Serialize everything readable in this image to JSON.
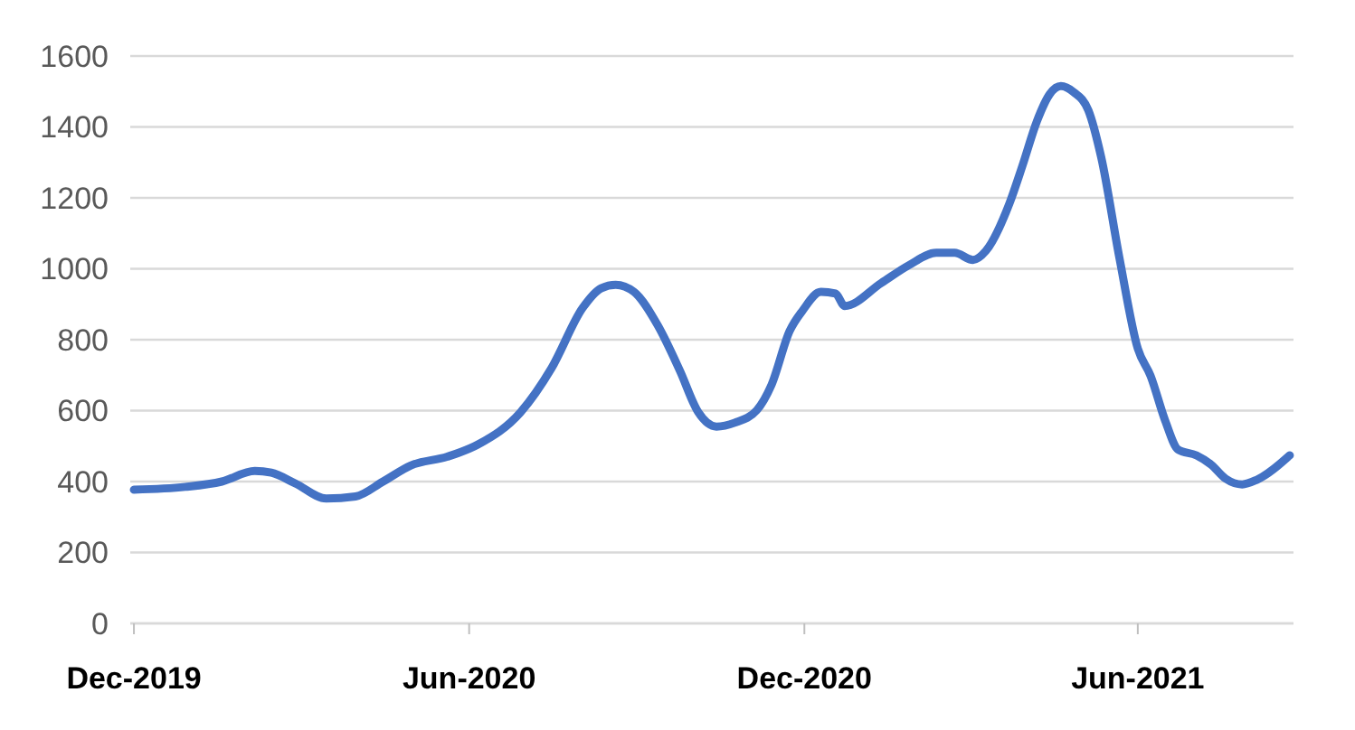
{
  "chart_data": {
    "type": "line",
    "x": [
      "2019-12-01",
      "2019-12-29",
      "2020-01-18",
      "2020-02-05",
      "2020-02-14",
      "2020-02-27",
      "2020-03-15",
      "2020-03-31",
      "2020-04-15",
      "2020-04-30",
      "2020-05-20",
      "2020-06-06",
      "2020-06-29",
      "2020-07-16",
      "2020-08-02",
      "2020-08-12",
      "2020-08-20",
      "2020-08-30",
      "2020-09-12",
      "2020-09-24",
      "2020-10-04",
      "2020-10-14",
      "2020-10-24",
      "2020-11-05",
      "2020-11-13",
      "2020-11-23",
      "2020-11-30",
      "2020-12-10",
      "2020-12-18",
      "2020-12-23",
      "2021-01-12",
      "2021-01-27",
      "2021-02-11",
      "2021-02-21",
      "2021-03-03",
      "2021-03-10",
      "2021-03-23",
      "2021-03-30",
      "2021-04-07",
      "2021-04-14",
      "2021-04-20",
      "2021-04-27",
      "2021-05-05",
      "2021-05-12",
      "2021-05-22",
      "2021-06-01",
      "2021-06-08",
      "2021-06-16",
      "2021-06-23",
      "2021-07-03",
      "2021-07-11",
      "2021-07-19",
      "2021-07-28",
      "2021-08-05",
      "2021-08-23"
    ],
    "series": [
      {
        "color": "#4472c4",
        "values": [
          377,
          385,
          400,
          430,
          425,
          395,
          352,
          358,
          400,
          445,
          470,
          505,
          595,
          720,
          890,
          945,
          955,
          935,
          840,
          713,
          596,
          555,
          566,
          601,
          672,
          825,
          882,
          935,
          930,
          895,
          960,
          1010,
          1045,
          1045,
          1025,
          1050,
          1185,
          1290,
          1417,
          1493,
          1515,
          1498,
          1447,
          1315,
          1030,
          775,
          698,
          571,
          490,
          474,
          448,
          408,
          392,
          405,
          474
        ]
      }
    ],
    "xlim": [
      "2019-11-29",
      "2021-08-25"
    ],
    "xticks": [
      {
        "value": "2019-12-01",
        "label": "Dec-2019"
      },
      {
        "value": "2020-06-01",
        "label": "Jun-2020"
      },
      {
        "value": "2020-12-01",
        "label": "Dec-2020"
      },
      {
        "value": "2021-06-01",
        "label": "Jun-2021"
      }
    ],
    "ylim": [
      0,
      1600
    ],
    "yticks": [
      0,
      200,
      400,
      600,
      800,
      1000,
      1200,
      1400,
      1600
    ],
    "grid": "y",
    "marker": "none",
    "line_style": "solid"
  }
}
